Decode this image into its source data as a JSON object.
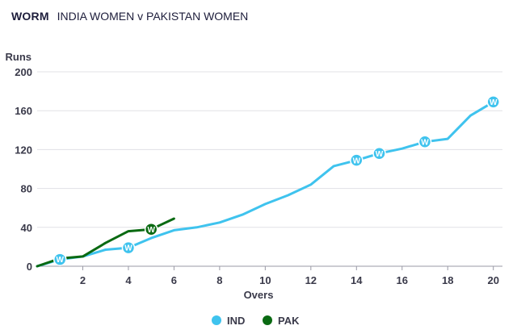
{
  "header": {
    "title": "WORM",
    "subtitle": "INDIA WOMEN v PAKISTAN WOMEN"
  },
  "chart_data": {
    "type": "line",
    "ylabel": "Runs",
    "xlabel": "Overs",
    "xlim": [
      0,
      20.4
    ],
    "ylim": [
      0,
      200
    ],
    "x_ticks": [
      2,
      4,
      6,
      8,
      10,
      12,
      14,
      16,
      18,
      20
    ],
    "y_ticks": [
      0,
      40,
      80,
      120,
      160,
      200
    ],
    "grid": "horizontal",
    "legend_position": "bottom-center",
    "wicket_marker": "W",
    "series": [
      {
        "name": "IND",
        "color": "#3fc3ee",
        "points": [
          [
            0,
            0
          ],
          [
            1,
            7
          ],
          [
            2,
            10
          ],
          [
            3,
            17
          ],
          [
            4,
            19
          ],
          [
            5,
            29
          ],
          [
            6,
            37
          ],
          [
            7,
            40
          ],
          [
            8,
            45
          ],
          [
            9,
            53
          ],
          [
            10,
            64
          ],
          [
            11,
            73
          ],
          [
            12,
            84
          ],
          [
            13,
            103
          ],
          [
            14,
            109
          ],
          [
            15,
            116
          ],
          [
            16,
            121
          ],
          [
            17,
            128
          ],
          [
            18,
            131
          ],
          [
            19,
            155
          ],
          [
            20,
            169
          ]
        ],
        "wickets": [
          1,
          4,
          14,
          15,
          17,
          20
        ]
      },
      {
        "name": "PAK",
        "color": "#0a6a12",
        "points": [
          [
            0,
            0
          ],
          [
            1,
            8
          ],
          [
            2,
            10
          ],
          [
            3,
            24
          ],
          [
            4,
            36
          ],
          [
            5,
            38
          ],
          [
            6,
            49
          ]
        ],
        "wickets": [
          5
        ]
      }
    ]
  }
}
